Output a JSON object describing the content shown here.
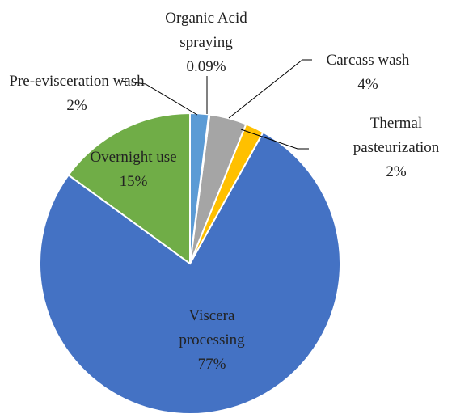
{
  "chart_data": {
    "type": "pie",
    "categories": [
      "Pre-evisceration wash",
      "Organic Acid spraying",
      "Carcass wash",
      "Thermal pasteurization",
      "Viscera processing",
      "Overnight use"
    ],
    "values": [
      2,
      0.09,
      4,
      2,
      77,
      15
    ],
    "value_labels": [
      "2%",
      "0.09%",
      "4%",
      "2%",
      "77%",
      "15%"
    ],
    "colors": [
      "#5b9bd5",
      "#ed7d31",
      "#a5a5a5",
      "#ffc000",
      "#4472c4",
      "#70ad47"
    ]
  }
}
